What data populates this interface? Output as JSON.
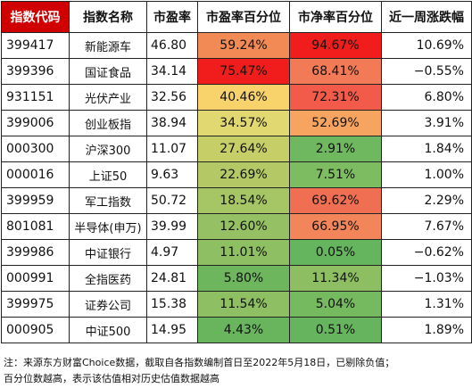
{
  "headers": [
    "指数代码",
    "指数名称",
    "市盈率",
    "市盈率百分位",
    "市净率百分位",
    "近一周涨跌幅"
  ],
  "rows": [
    {
      "code": "399417",
      "name": "新能源车",
      "pe": "46.80",
      "pe_pct": "59.24%",
      "pe_color": "#f28a56",
      "pb_pct": "94.67%",
      "pb_color": "#f11d1d",
      "change": "10.69%"
    },
    {
      "code": "399396",
      "name": "国证食品",
      "pe": "34.14",
      "pe_pct": "75.47%",
      "pe_color": "#f11d1d",
      "pb_pct": "68.41%",
      "pb_color": "#f37a56",
      "change": "−0.55%"
    },
    {
      "code": "931151",
      "name": "光伏产业",
      "pe": "32.56",
      "pe_pct": "40.46%",
      "pe_color": "#f8d26b",
      "pb_pct": "72.31%",
      "pb_color": "#f25a4a",
      "change": "6.80%"
    },
    {
      "code": "399006",
      "name": "创业板指",
      "pe": "38.94",
      "pe_pct": "34.57%",
      "pe_color": "#e2d872",
      "pb_pct": "52.69%",
      "pb_color": "#f7a460",
      "change": "3.91%"
    },
    {
      "code": "000300",
      "name": "沪深300",
      "pe": "11.07",
      "pe_pct": "27.64%",
      "pe_color": "#c6cf67",
      "pb_pct": "2.91%",
      "pb_color": "#6fb85f",
      "change": "1.84%"
    },
    {
      "code": "000016",
      "name": "上证50",
      "pe": "9.63",
      "pe_pct": "22.69%",
      "pe_color": "#b4c865",
      "pb_pct": "7.51%",
      "pb_color": "#7ebc61",
      "change": "1.00%"
    },
    {
      "code": "399959",
      "name": "军工指数",
      "pe": "50.72",
      "pe_pct": "18.54%",
      "pe_color": "#a6c564",
      "pb_pct": "69.62%",
      "pb_color": "#f06e52",
      "change": "2.29%"
    },
    {
      "code": "801081",
      "name": "半导体(申万)",
      "pe": "39.99",
      "pe_pct": "12.60%",
      "pe_color": "#95c063",
      "pb_pct": "66.95%",
      "pb_color": "#f3855a",
      "change": "7.67%"
    },
    {
      "code": "399986",
      "name": "中证银行",
      "pe": "4.97",
      "pe_pct": "11.01%",
      "pe_color": "#8ebf62",
      "pb_pct": "0.05%",
      "pb_color": "#65b55e",
      "change": "−0.62%"
    },
    {
      "code": "000991",
      "name": "全指医药",
      "pe": "24.81",
      "pe_pct": "5.80%",
      "pe_color": "#6eb65e",
      "pb_pct": "11.34%",
      "pb_color": "#8dbf62",
      "change": "−1.03%"
    },
    {
      "code": "399975",
      "name": "证券公司",
      "pe": "15.38",
      "pe_pct": "11.54%",
      "pe_color": "#8ebf62",
      "pb_pct": "5.04%",
      "pb_color": "#76ba60",
      "change": "1.31%"
    },
    {
      "code": "000905",
      "name": "中证500",
      "pe": "14.95",
      "pe_pct": "4.43%",
      "pe_color": "#68b55e",
      "pb_pct": "0.51%",
      "pb_color": "#66b55e",
      "change": "1.89%"
    }
  ],
  "note_line1": "注：来源东方财富Choice数据，截取自各指数编制首日至2022年5月18日，已剔除负值；",
  "note_line2": "百分位数越高，表示该估值相对历史估值数据越高"
}
